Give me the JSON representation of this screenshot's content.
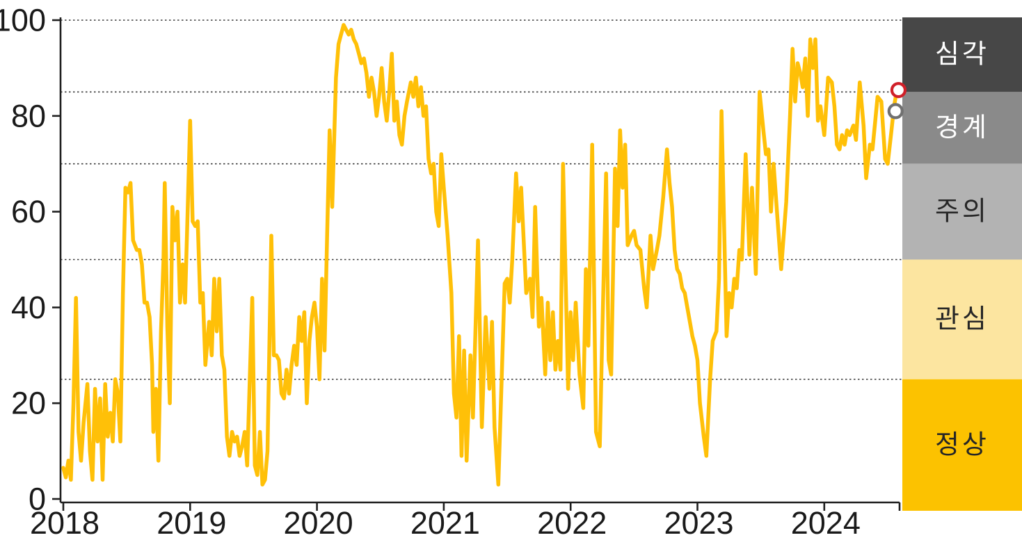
{
  "chart_data": {
    "type": "line",
    "title": "",
    "line_color": "#FFC008",
    "axis_color": "#1f1f1f",
    "gridline_color": "#3a3a3a",
    "background": "#ffffff",
    "x_axis": {
      "ticks": [
        2018,
        2019,
        2020,
        2021,
        2022,
        2023,
        2024
      ]
    },
    "y_axis": {
      "ticks": [
        0,
        20,
        40,
        60,
        80,
        100
      ],
      "range": [
        0,
        100
      ]
    },
    "gridlines": [
      100,
      85,
      70,
      50,
      25
    ],
    "zones": [
      {
        "key": "severe",
        "label": "심각",
        "range": [
          85,
          100
        ],
        "color": "#474747",
        "text_color": "#ffffff"
      },
      {
        "key": "warning",
        "label": "경계",
        "range": [
          70,
          85
        ],
        "color": "#8a8a8a",
        "text_color": "#ffffff"
      },
      {
        "key": "caution",
        "label": "주의",
        "range": [
          50,
          70
        ],
        "color": "#b3b3b3",
        "text_color": "#262626"
      },
      {
        "key": "interest",
        "label": "관심",
        "range": [
          25,
          50
        ],
        "color": "#fce5a0",
        "text_color": "#262626"
      },
      {
        "key": "normal",
        "label": "정상",
        "range": [
          0,
          25
        ],
        "color": "#fcc200",
        "text_color": "#262626"
      }
    ],
    "markers": [
      {
        "key": "red-ring",
        "color": "#d02029",
        "x": 2024.585,
        "value": 85.4
      },
      {
        "key": "gray-ring",
        "color": "#707070",
        "x": 2024.562,
        "value": 81.0
      }
    ],
    "points": [
      [
        2018.0,
        6.5
      ],
      [
        2018.02,
        4.5
      ],
      [
        2018.04,
        8
      ],
      [
        2018.06,
        4
      ],
      [
        2018.08,
        20
      ],
      [
        2018.1,
        42
      ],
      [
        2018.12,
        14
      ],
      [
        2018.14,
        8
      ],
      [
        2018.16,
        16
      ],
      [
        2018.19,
        24
      ],
      [
        2018.21,
        10
      ],
      [
        2018.23,
        4
      ],
      [
        2018.25,
        23
      ],
      [
        2018.27,
        12
      ],
      [
        2018.29,
        21
      ],
      [
        2018.31,
        4
      ],
      [
        2018.33,
        24
      ],
      [
        2018.35,
        13
      ],
      [
        2018.37,
        18
      ],
      [
        2018.39,
        12
      ],
      [
        2018.41,
        25
      ],
      [
        2018.43,
        22
      ],
      [
        2018.45,
        12
      ],
      [
        2018.47,
        43
      ],
      [
        2018.49,
        65
      ],
      [
        2018.51,
        64
      ],
      [
        2018.53,
        66
      ],
      [
        2018.55,
        54
      ],
      [
        2018.58,
        52
      ],
      [
        2018.6,
        52
      ],
      [
        2018.62,
        49
      ],
      [
        2018.64,
        41
      ],
      [
        2018.66,
        41
      ],
      [
        2018.68,
        38
      ],
      [
        2018.7,
        28
      ],
      [
        2018.71,
        14
      ],
      [
        2018.73,
        23
      ],
      [
        2018.75,
        8
      ],
      [
        2018.77,
        35
      ],
      [
        2018.79,
        50
      ],
      [
        2018.8,
        66
      ],
      [
        2018.82,
        36
      ],
      [
        2018.84,
        20
      ],
      [
        2018.86,
        61
      ],
      [
        2018.88,
        54
      ],
      [
        2018.9,
        60
      ],
      [
        2018.92,
        41
      ],
      [
        2018.94,
        49
      ],
      [
        2018.96,
        41
      ],
      [
        2018.98,
        60
      ],
      [
        2019.0,
        79
      ],
      [
        2019.02,
        58
      ],
      [
        2019.04,
        57
      ],
      [
        2019.06,
        58
      ],
      [
        2019.08,
        41
      ],
      [
        2019.1,
        43
      ],
      [
        2019.12,
        28
      ],
      [
        2019.15,
        37
      ],
      [
        2019.17,
        30
      ],
      [
        2019.19,
        46
      ],
      [
        2019.21,
        35
      ],
      [
        2019.23,
        46
      ],
      [
        2019.25,
        30
      ],
      [
        2019.27,
        27
      ],
      [
        2019.29,
        13
      ],
      [
        2019.31,
        9
      ],
      [
        2019.33,
        14
      ],
      [
        2019.35,
        12
      ],
      [
        2019.37,
        13
      ],
      [
        2019.39,
        9
      ],
      [
        2019.41,
        11
      ],
      [
        2019.43,
        14
      ],
      [
        2019.45,
        7
      ],
      [
        2019.47,
        25
      ],
      [
        2019.49,
        42
      ],
      [
        2019.51,
        7
      ],
      [
        2019.53,
        5
      ],
      [
        2019.55,
        14
      ],
      [
        2019.57,
        3
      ],
      [
        2019.59,
        4
      ],
      [
        2019.61,
        10
      ],
      [
        2019.64,
        55
      ],
      [
        2019.66,
        30
      ],
      [
        2019.68,
        30
      ],
      [
        2019.7,
        29
      ],
      [
        2019.72,
        22
      ],
      [
        2019.74,
        21
      ],
      [
        2019.76,
        27
      ],
      [
        2019.78,
        22
      ],
      [
        2019.8,
        28
      ],
      [
        2019.82,
        32
      ],
      [
        2019.84,
        28
      ],
      [
        2019.86,
        38
      ],
      [
        2019.88,
        33
      ],
      [
        2019.9,
        39
      ],
      [
        2019.92,
        20
      ],
      [
        2019.94,
        33
      ],
      [
        2019.96,
        38
      ],
      [
        2019.98,
        41
      ],
      [
        2020.0,
        36
      ],
      [
        2020.02,
        25
      ],
      [
        2020.04,
        46
      ],
      [
        2020.06,
        31
      ],
      [
        2020.08,
        55
      ],
      [
        2020.1,
        77
      ],
      [
        2020.12,
        61
      ],
      [
        2020.15,
        88
      ],
      [
        2020.17,
        95
      ],
      [
        2020.19,
        97
      ],
      [
        2020.21,
        99
      ],
      [
        2020.23,
        98
      ],
      [
        2020.25,
        97
      ],
      [
        2020.27,
        98
      ],
      [
        2020.29,
        96
      ],
      [
        2020.31,
        95
      ],
      [
        2020.33,
        93
      ],
      [
        2020.35,
        91
      ],
      [
        2020.37,
        92
      ],
      [
        2020.39,
        89
      ],
      [
        2020.41,
        84
      ],
      [
        2020.43,
        88
      ],
      [
        2020.45,
        85
      ],
      [
        2020.47,
        80
      ],
      [
        2020.49,
        84
      ],
      [
        2020.51,
        90
      ],
      [
        2020.53,
        83
      ],
      [
        2020.55,
        79
      ],
      [
        2020.57,
        85
      ],
      [
        2020.59,
        93
      ],
      [
        2020.61,
        79
      ],
      [
        2020.63,
        83
      ],
      [
        2020.65,
        76
      ],
      [
        2020.67,
        74
      ],
      [
        2020.69,
        80
      ],
      [
        2020.71,
        83
      ],
      [
        2020.74,
        87
      ],
      [
        2020.76,
        84
      ],
      [
        2020.78,
        88
      ],
      [
        2020.8,
        82
      ],
      [
        2020.82,
        86
      ],
      [
        2020.84,
        80
      ],
      [
        2020.86,
        82
      ],
      [
        2020.88,
        71
      ],
      [
        2020.9,
        68
      ],
      [
        2020.92,
        70
      ],
      [
        2020.94,
        60
      ],
      [
        2020.96,
        57
      ],
      [
        2020.98,
        72
      ],
      [
        2021.0,
        65
      ],
      [
        2021.03,
        55
      ],
      [
        2021.06,
        43
      ],
      [
        2021.08,
        22
      ],
      [
        2021.1,
        17
      ],
      [
        2021.12,
        34
      ],
      [
        2021.14,
        9
      ],
      [
        2021.16,
        31
      ],
      [
        2021.18,
        8
      ],
      [
        2021.21,
        30
      ],
      [
        2021.23,
        17
      ],
      [
        2021.27,
        54
      ],
      [
        2021.3,
        15
      ],
      [
        2021.33,
        38
      ],
      [
        2021.36,
        23
      ],
      [
        2021.38,
        37
      ],
      [
        2021.4,
        15
      ],
      [
        2021.43,
        3
      ],
      [
        2021.48,
        45
      ],
      [
        2021.5,
        46
      ],
      [
        2021.52,
        41
      ],
      [
        2021.54,
        50
      ],
      [
        2021.57,
        68
      ],
      [
        2021.59,
        58
      ],
      [
        2021.61,
        65
      ],
      [
        2021.65,
        43
      ],
      [
        2021.68,
        46
      ],
      [
        2021.7,
        38
      ],
      [
        2021.72,
        61
      ],
      [
        2021.75,
        36
      ],
      [
        2021.77,
        42
      ],
      [
        2021.8,
        26
      ],
      [
        2021.82,
        41
      ],
      [
        2021.84,
        29
      ],
      [
        2021.86,
        39
      ],
      [
        2021.88,
        27
      ],
      [
        2021.9,
        33
      ],
      [
        2021.92,
        27
      ],
      [
        2021.94,
        70
      ],
      [
        2021.98,
        23
      ],
      [
        2022.0,
        39
      ],
      [
        2022.02,
        29
      ],
      [
        2022.04,
        41
      ],
      [
        2022.07,
        26
      ],
      [
        2022.1,
        19
      ],
      [
        2022.12,
        48
      ],
      [
        2022.14,
        32
      ],
      [
        2022.17,
        74
      ],
      [
        2022.2,
        14
      ],
      [
        2022.23,
        11
      ],
      [
        2022.25,
        35
      ],
      [
        2022.28,
        68
      ],
      [
        2022.3,
        29
      ],
      [
        2022.32,
        26
      ],
      [
        2022.35,
        69
      ],
      [
        2022.37,
        57
      ],
      [
        2022.39,
        77
      ],
      [
        2022.41,
        65
      ],
      [
        2022.43,
        74
      ],
      [
        2022.45,
        53
      ],
      [
        2022.48,
        55
      ],
      [
        2022.5,
        56
      ],
      [
        2022.52,
        53
      ],
      [
        2022.55,
        52
      ],
      [
        2022.58,
        44
      ],
      [
        2022.6,
        40
      ],
      [
        2022.63,
        55
      ],
      [
        2022.65,
        48
      ],
      [
        2022.68,
        52
      ],
      [
        2022.7,
        55
      ],
      [
        2022.73,
        63
      ],
      [
        2022.76,
        73
      ],
      [
        2022.78,
        66
      ],
      [
        2022.8,
        61
      ],
      [
        2022.82,
        52
      ],
      [
        2022.84,
        48
      ],
      [
        2022.86,
        47
      ],
      [
        2022.88,
        44
      ],
      [
        2022.9,
        43
      ],
      [
        2022.92,
        40
      ],
      [
        2022.94,
        37
      ],
      [
        2022.96,
        34
      ],
      [
        2022.98,
        32
      ],
      [
        2023.0,
        29
      ],
      [
        2023.02,
        20
      ],
      [
        2023.05,
        13
      ],
      [
        2023.07,
        9
      ],
      [
        2023.1,
        25
      ],
      [
        2023.12,
        33
      ],
      [
        2023.15,
        35
      ],
      [
        2023.17,
        46
      ],
      [
        2023.19,
        81
      ],
      [
        2023.23,
        34
      ],
      [
        2023.25,
        43
      ],
      [
        2023.27,
        40
      ],
      [
        2023.29,
        46
      ],
      [
        2023.31,
        44
      ],
      [
        2023.33,
        52
      ],
      [
        2023.35,
        50
      ],
      [
        2023.38,
        72
      ],
      [
        2023.41,
        51
      ],
      [
        2023.43,
        65
      ],
      [
        2023.46,
        47
      ],
      [
        2023.49,
        85
      ],
      [
        2023.52,
        77
      ],
      [
        2023.54,
        72
      ],
      [
        2023.56,
        73
      ],
      [
        2023.58,
        60
      ],
      [
        2023.6,
        70
      ],
      [
        2023.63,
        59
      ],
      [
        2023.66,
        48
      ],
      [
        2023.7,
        62
      ],
      [
        2023.73,
        80
      ],
      [
        2023.75,
        94
      ],
      [
        2023.77,
        83
      ],
      [
        2023.79,
        91
      ],
      [
        2023.81,
        89
      ],
      [
        2023.83,
        86
      ],
      [
        2023.85,
        92
      ],
      [
        2023.87,
        80
      ],
      [
        2023.89,
        96
      ],
      [
        2023.91,
        90
      ],
      [
        2023.93,
        96
      ],
      [
        2023.95,
        79
      ],
      [
        2023.97,
        82
      ],
      [
        2024.0,
        76
      ],
      [
        2024.03,
        88
      ],
      [
        2024.06,
        87
      ],
      [
        2024.08,
        82
      ],
      [
        2024.1,
        74
      ],
      [
        2024.12,
        73
      ],
      [
        2024.14,
        76
      ],
      [
        2024.16,
        74
      ],
      [
        2024.18,
        77
      ],
      [
        2024.2,
        76
      ],
      [
        2024.23,
        78
      ],
      [
        2024.25,
        75
      ],
      [
        2024.28,
        87
      ],
      [
        2024.31,
        78
      ],
      [
        2024.33,
        67
      ],
      [
        2024.36,
        74
      ],
      [
        2024.38,
        73
      ],
      [
        2024.42,
        84
      ],
      [
        2024.45,
        83
      ],
      [
        2024.48,
        71
      ],
      [
        2024.5,
        70
      ],
      [
        2024.53,
        77
      ],
      [
        2024.55,
        82
      ],
      [
        2024.57,
        85
      ]
    ]
  }
}
